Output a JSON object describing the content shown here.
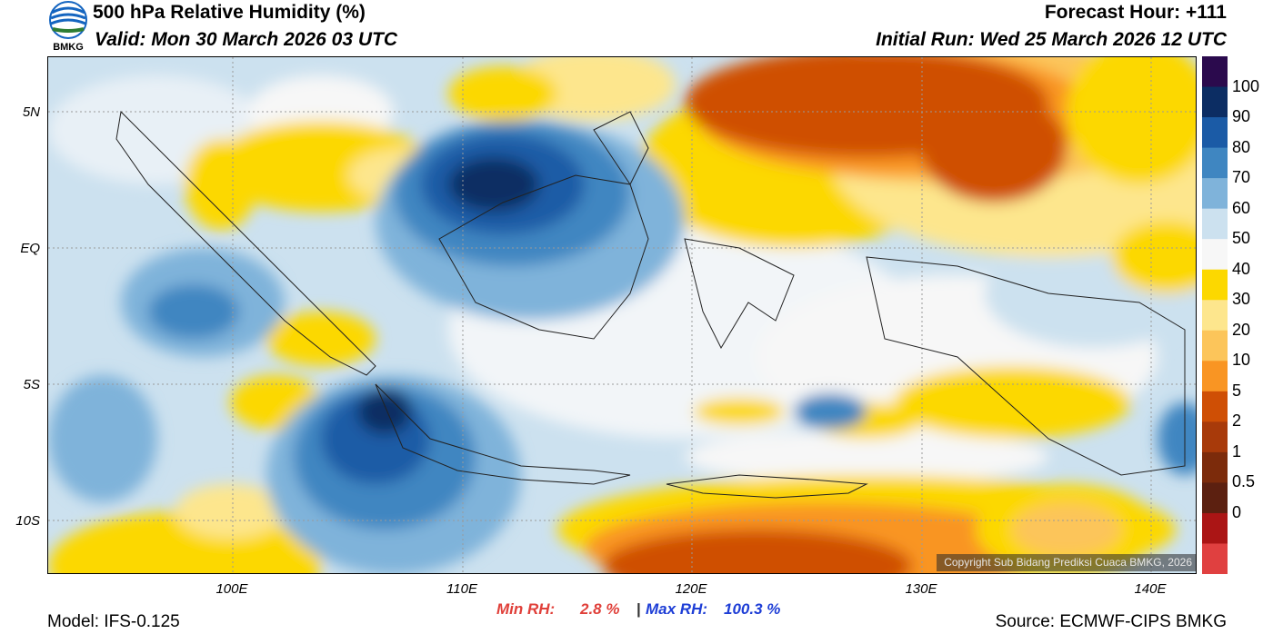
{
  "header": {
    "title": "500 hPa Relative Humidity (%)",
    "valid": "Valid: Mon 30 March 2026 03 UTC",
    "forecast_hour": "Forecast Hour: +111",
    "initial_run": "Initial Run: Wed 25 March 2026 12 UTC",
    "logo_text": "BMKG"
  },
  "map": {
    "lat_labels": [
      "5N",
      "EQ",
      "5S",
      "10S"
    ],
    "lon_labels": [
      "100E",
      "110E",
      "120E",
      "130E",
      "140E"
    ],
    "copyright": "Copyright Sub Bidang Prediksi Cuaca BMKG, 2026"
  },
  "colorbar": {
    "labels": [
      "100",
      "90",
      "80",
      "70",
      "60",
      "50",
      "40",
      "30",
      "20",
      "10",
      "5",
      "2",
      "1",
      "0.5",
      "0"
    ],
    "colors": [
      "#2b0a4d",
      "#0c2d63",
      "#1b5ba6",
      "#3f86c1",
      "#7fb3da",
      "#cce1ef",
      "#f7f7f7",
      "#fcd800",
      "#fde68d",
      "#fcc55a",
      "#f99523",
      "#cf4f05",
      "#a83a0a",
      "#7c2b0b",
      "#5c2010",
      "#ab1515",
      "#e04040"
    ]
  },
  "stats": {
    "min_label": "Min RH:",
    "min_value": "2.8 %",
    "separator": "|",
    "max_label": "Max RH:",
    "max_value": "100.3 %"
  },
  "footer": {
    "model": "Model: IFS-0.125",
    "source": "Source: ECMWF-CIPS BMKG"
  }
}
